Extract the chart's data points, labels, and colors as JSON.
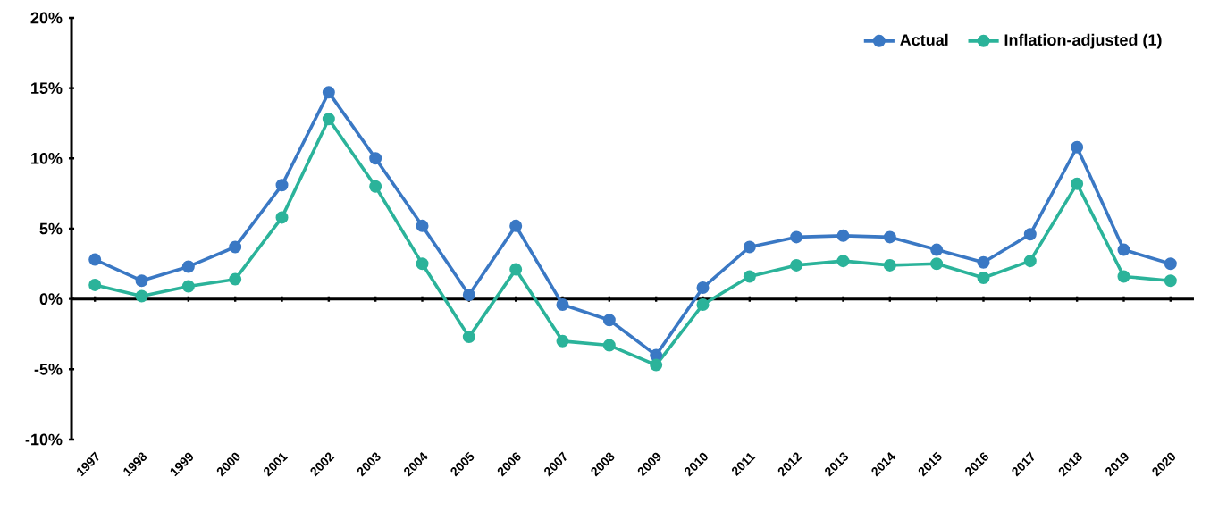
{
  "chart_data": {
    "type": "line",
    "categories": [
      "1997",
      "1998",
      "1999",
      "2000",
      "2001",
      "2002",
      "2003",
      "2004",
      "2005",
      "2006",
      "2007",
      "2008",
      "2009",
      "2010",
      "2011",
      "2012",
      "2013",
      "2014",
      "2015",
      "2016",
      "2017",
      "2018",
      "2019",
      "2020"
    ],
    "series": [
      {
        "name": "Actual",
        "color": "#3a78c4",
        "values": [
          2.8,
          1.3,
          2.3,
          3.7,
          8.1,
          14.7,
          10.0,
          5.2,
          0.3,
          5.2,
          -0.4,
          -1.5,
          -4.0,
          0.8,
          3.7,
          4.4,
          4.5,
          4.4,
          3.5,
          2.6,
          4.6,
          10.8,
          3.5,
          2.5
        ]
      },
      {
        "name": "Inflation-adjusted (1)",
        "color": "#2bb39a",
        "values": [
          1.0,
          0.2,
          0.9,
          1.4,
          5.8,
          12.8,
          8.0,
          2.5,
          -2.7,
          2.1,
          -3.0,
          -3.3,
          -4.7,
          -0.4,
          1.6,
          2.4,
          2.7,
          2.4,
          2.5,
          1.5,
          2.7,
          8.2,
          1.6,
          1.3
        ]
      }
    ],
    "ylim": [
      -10,
      20
    ],
    "yticks": [
      {
        "value": -10,
        "label": "-10%"
      },
      {
        "value": -5,
        "label": "-5%"
      },
      {
        "value": 0,
        "label": "0%"
      },
      {
        "value": 5,
        "label": "5%"
      },
      {
        "value": 10,
        "label": "10%"
      },
      {
        "value": 15,
        "label": "15%"
      },
      {
        "value": 20,
        "label": "20%"
      }
    ],
    "marker": "circle",
    "line_style": "solid",
    "legend": "top right"
  }
}
